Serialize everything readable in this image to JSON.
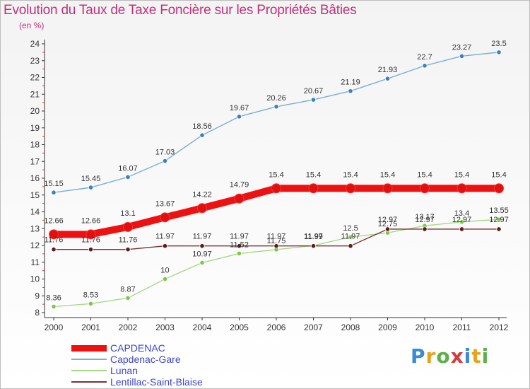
{
  "title": "Evolution du Taux de Taxe Foncière sur les Propriétés Bâties",
  "unit": "(en %)",
  "logo": {
    "text": "Proxiti",
    "letter_colors": [
      "#3a8ad4",
      "#e8a21c",
      "#5bb04a",
      "#d23c3c",
      "#3a8ad4",
      "#e8a21c",
      "#5bb04a"
    ]
  },
  "chart_data": {
    "type": "line",
    "x": [
      "2000",
      "2001",
      "2002",
      "2003",
      "2004",
      "2005",
      "2006",
      "2007",
      "2008",
      "2009",
      "2010",
      "2011",
      "2012"
    ],
    "ylim": [
      8,
      24
    ],
    "yticks": [
      "8",
      "9",
      "10",
      "11",
      "12",
      "13",
      "14",
      "15",
      "16",
      "17",
      "18",
      "19",
      "20",
      "21",
      "22",
      "23",
      "24"
    ],
    "grid": false,
    "legend_position": "bottom-left",
    "series": [
      {
        "name": "CAPDENAC",
        "color": "#ee1111",
        "marker_color": "#cc0000",
        "values": [
          12.66,
          12.66,
          13.1,
          13.67,
          14.22,
          14.79,
          15.4,
          15.4,
          15.4,
          15.4,
          15.4,
          15.4,
          15.4
        ],
        "labels": [
          "12.66",
          "12.66",
          "13.1",
          "13.67",
          "14.22",
          "14.79",
          "15.4",
          "15.4",
          "15.4",
          "15.4",
          "15.4",
          "15.4",
          "15.4"
        ]
      },
      {
        "name": "Capdenac-Gare",
        "color": "#7aaed6",
        "marker_color": "#3a7fc0",
        "values": [
          15.15,
          15.45,
          16.07,
          17.03,
          18.56,
          19.67,
          20.26,
          20.67,
          21.19,
          21.93,
          22.7,
          23.27,
          23.5
        ],
        "labels": [
          "15.15",
          "15.45",
          "16.07",
          "17.03",
          "18.56",
          "19.67",
          "20.26",
          "20.67",
          "21.19",
          "21.93",
          "22.7",
          "23.27",
          "23.5"
        ]
      },
      {
        "name": "Lunan",
        "color": "#a8d886",
        "marker_color": "#7cc84a",
        "values": [
          8.36,
          8.53,
          8.87,
          10,
          10.97,
          11.52,
          11.75,
          11.99,
          12.5,
          12.75,
          13.17,
          13.4,
          13.55
        ],
        "labels": [
          "8.36",
          "8.53",
          "8.87",
          "10",
          "10.97",
          "11.52",
          "11.75",
          "11.99",
          "12.5",
          "12.75",
          "13.17",
          "13.4",
          "13.55"
        ]
      },
      {
        "name": "Lentillac-Saint-Blaise",
        "color": "#7a3535",
        "marker_color": "#5a1c1c",
        "values": [
          11.76,
          11.76,
          11.76,
          11.97,
          11.97,
          11.97,
          11.97,
          11.97,
          11.97,
          12.97,
          12.97,
          12.97,
          12.97
        ],
        "labels": [
          "11.76",
          "11.76",
          "11.76",
          "11.97",
          "11.97",
          "11.97",
          "11.97",
          "11.97",
          "11.97",
          "12.97",
          "12.97",
          "12.97",
          "12.97"
        ]
      }
    ]
  }
}
